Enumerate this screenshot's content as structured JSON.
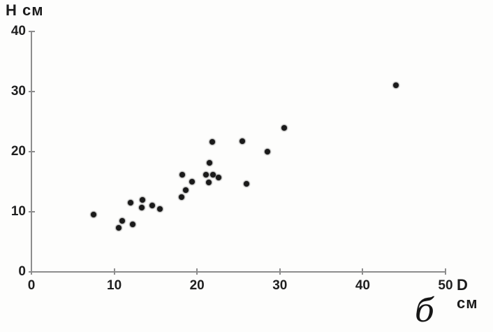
{
  "figure": {
    "caption": "б"
  },
  "chart_data": {
    "type": "scatter",
    "title": "",
    "xlabel": "D см",
    "ylabel": "Н см",
    "xlim": [
      0,
      50
    ],
    "ylim": [
      0,
      40
    ],
    "xticks": [
      0,
      10,
      20,
      30,
      40,
      50
    ],
    "yticks": [
      0,
      10,
      20,
      30,
      40
    ],
    "grid": false,
    "legend_position": "none",
    "marker": "circle",
    "marker_color": "#1a1a1a",
    "axis_color": "#8d8d8d",
    "text_color": "#1f1f1f",
    "background_color": "#fdfdfc",
    "points": [
      [
        7.5,
        9.5
      ],
      [
        10.5,
        7.3
      ],
      [
        11.0,
        8.5
      ],
      [
        12.2,
        7.9
      ],
      [
        12.0,
        11.5
      ],
      [
        13.4,
        12.0
      ],
      [
        13.3,
        10.7
      ],
      [
        14.6,
        11.0
      ],
      [
        15.5,
        10.5
      ],
      [
        18.2,
        16.2
      ],
      [
        18.6,
        13.6
      ],
      [
        18.1,
        12.4
      ],
      [
        19.4,
        15.0
      ],
      [
        21.5,
        18.1
      ],
      [
        21.1,
        16.2
      ],
      [
        21.9,
        16.2
      ],
      [
        22.6,
        15.7
      ],
      [
        21.4,
        14.9
      ],
      [
        21.8,
        21.6
      ],
      [
        25.5,
        21.8
      ],
      [
        26.0,
        14.6
      ],
      [
        28.5,
        20.0
      ],
      [
        30.5,
        24.0
      ],
      [
        44.0,
        31.0
      ]
    ]
  }
}
